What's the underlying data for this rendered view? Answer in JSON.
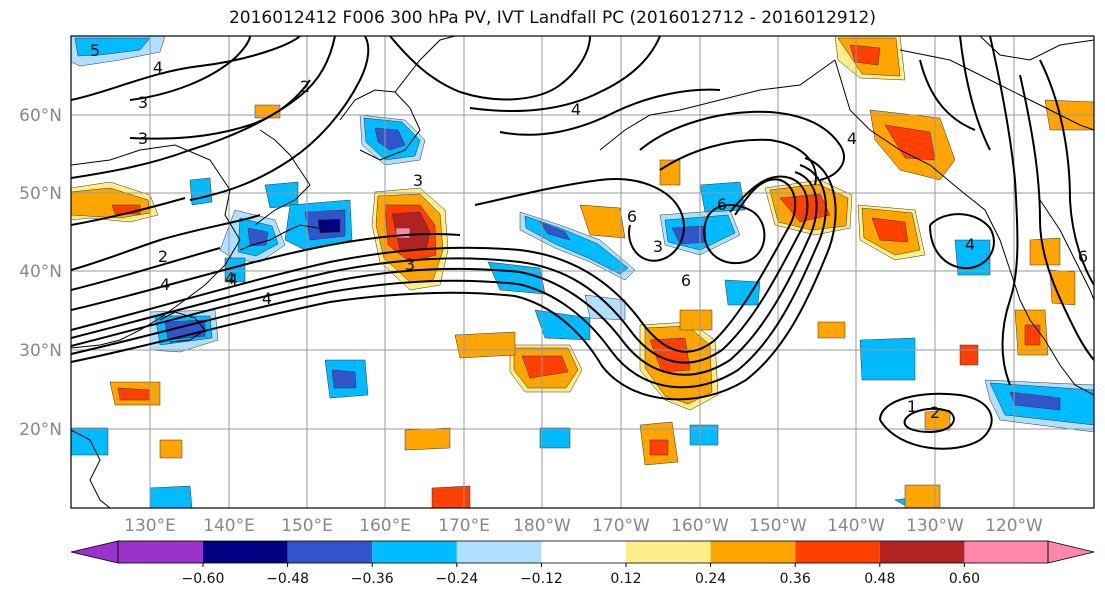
{
  "title": "2016012412 F006 300 hPa PV, IVT Landfall PC (2016012712 - 2016012912)",
  "colors": {
    "neg_060_below": "#9933cc",
    "neg_060_048": "#000080",
    "neg_048_036": "#3355cc",
    "neg_036_024": "#00bbff",
    "neg_024_012": "#b0e0ff",
    "neutral": "#ffffff",
    "pos_012_024": "#ffee88",
    "pos_024_036": "#ffa500",
    "pos_036_048": "#ff4000",
    "pos_048_060": "#b22222",
    "pos_060_above": "#ff88aa",
    "grid": "#999999",
    "coast": "#000000",
    "contour": "#000000"
  },
  "latitude_labels": [
    "60°N",
    "50°N",
    "40°N",
    "30°N",
    "20°N"
  ],
  "longitude_labels": [
    "130°E",
    "140°E",
    "150°E",
    "160°E",
    "170°E",
    "180°W",
    "170°W",
    "160°W",
    "150°W",
    "140°W",
    "130°W",
    "120°W"
  ],
  "colorbar": {
    "ticks": [
      "−0.60",
      "−0.48",
      "−0.36",
      "−0.24",
      "−0.12",
      "0.12",
      "0.24",
      "0.36",
      "0.48",
      "0.60"
    ]
  },
  "contour_labels": [
    "5",
    "4",
    "3",
    "3",
    "2",
    "2",
    "4",
    "3",
    "4",
    "4",
    "4",
    "3",
    "4",
    "6",
    "6",
    "3",
    "6",
    "4",
    "1",
    "2",
    "6",
    "4"
  ]
}
